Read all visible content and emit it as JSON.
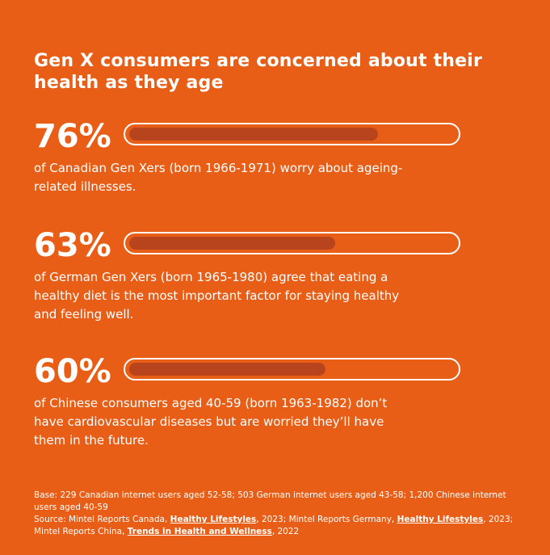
{
  "title": "Gen X consumers are concerned about their health as they age",
  "stats": [
    {
      "percent_label": "76%",
      "value": 0.76,
      "description": "of Canadian Gen Xers (born 1966-1971) worry about ageing-related illnesses."
    },
    {
      "percent_label": "63%",
      "value": 0.63,
      "description": "of German Gen Xers (born 1965-1980) agree that eating a healthy diet is the most important factor for staying healthy and feeling well."
    },
    {
      "percent_label": "60%",
      "value": 0.6,
      "description": "of Chinese consumers aged 40-59 (born 1963-1982) don’t have cardiovascular diseases but are worried they’ll have them in the future."
    }
  ],
  "footnote": {
    "base": "Base: 229 Canadian internet users aged 52-58; 503 German internet users aged 43-58; 1,200 Chinese internet users aged 40-59",
    "source_prefix": "Source: Mintel Reports Canada,",
    "source_1_title": "Healthy Lifestyles",
    "source_1_suffix": ", 2023; Mintel Reports Germany,",
    "source_2_title": "Healthy Lifestyles",
    "source_2_suffix": ", 2023; Mintel Reports China,",
    "source_3_title": "Trends in Health and Wellness",
    "source_3_suffix": ", 2022"
  },
  "colors": {
    "background": "#E85E16",
    "bar_fill": "#B8441E",
    "text": "#FFFFFF"
  }
}
